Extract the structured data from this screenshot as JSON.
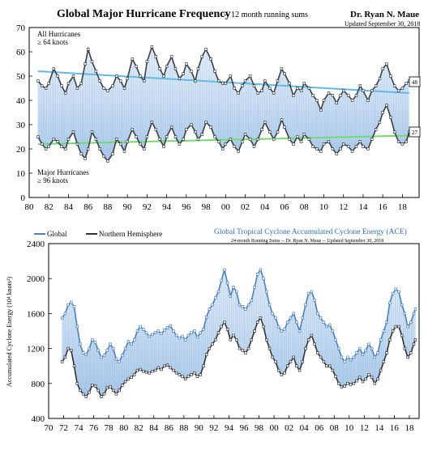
{
  "colors": {
    "all_line": "#3a3f46",
    "trend_all": "#5fb9ea",
    "trend_major": "#6fdc6f",
    "band_light": "#d5e6f6",
    "band_dark": "#9cc0e6",
    "global_line": "#4a7fbf",
    "nh_line": "#333333",
    "ace_title": "#2f6fb5"
  },
  "chart_data": [
    {
      "type": "line",
      "title": "Global Major Hurricane Frequency",
      "subtitle": "-- 12 month running sums",
      "author": "Dr. Ryan N. Maue",
      "updated": "Updated September 30, 2018",
      "xlim": [
        1980,
        2019.7
      ],
      "ylim": [
        0,
        70
      ],
      "yticks": [
        0,
        10,
        20,
        30,
        40,
        50,
        60,
        70
      ],
      "xtick_values": [
        1980,
        1982,
        1984,
        1986,
        1988,
        1990,
        1992,
        1994,
        1996,
        1998,
        2000,
        2002,
        2004,
        2006,
        2008,
        2010,
        2012,
        2014,
        2016,
        2018
      ],
      "xtick_labels": [
        "80",
        "82",
        "84",
        "86",
        "88",
        "90",
        "92",
        "94",
        "96",
        "98",
        "00",
        "02",
        "04",
        "06",
        "08",
        "10",
        "12",
        "14",
        "16",
        "18"
      ],
      "annotation_all": [
        "All Hurricanes",
        "≥ 64 knots"
      ],
      "annotation_major": [
        "Major Hurricanes",
        "≥ 96 knots"
      ],
      "end_labels": {
        "all": "48",
        "major": "27"
      },
      "trend_all": {
        "x": [
          1980.9,
          2018.7
        ],
        "y": [
          52,
          43
        ]
      },
      "trend_major": {
        "x": [
          1980.9,
          2018.7
        ],
        "y": [
          22,
          25.5
        ]
      },
      "series": [
        {
          "name": "All Hurricanes",
          "x": [
            1980.9,
            1981.3,
            1981.7,
            1982.0,
            1982.5,
            1982.9,
            1983.3,
            1983.7,
            1984.0,
            1984.5,
            1984.9,
            1985.3,
            1985.7,
            1986.0,
            1986.4,
            1986.8,
            1987.2,
            1987.6,
            1988.0,
            1988.5,
            1988.9,
            1989.3,
            1989.7,
            1990.0,
            1990.5,
            1990.9,
            1991.3,
            1991.7,
            1992.0,
            1992.5,
            1992.9,
            1993.3,
            1993.7,
            1994.0,
            1994.5,
            1994.9,
            1995.3,
            1995.7,
            1996.0,
            1996.5,
            1996.9,
            1997.2,
            1997.6,
            1998.0,
            1998.5,
            1998.9,
            1999.3,
            1999.7,
            2000.0,
            2000.5,
            2000.9,
            2001.3,
            2001.7,
            2002.0,
            2002.5,
            2002.9,
            2003.3,
            2003.7,
            2004.0,
            2004.5,
            2004.9,
            2005.3,
            2005.7,
            2006.0,
            2006.5,
            2006.9,
            2007.3,
            2007.7,
            2008.0,
            2008.5,
            2008.9,
            2009.3,
            2009.7,
            2010.0,
            2010.5,
            2010.9,
            2011.3,
            2011.7,
            2012.0,
            2012.5,
            2012.9,
            2013.3,
            2013.7,
            2014.0,
            2014.5,
            2014.9,
            2015.3,
            2015.7,
            2016.0,
            2016.4,
            2016.8,
            2017.2,
            2017.6,
            2018.0,
            2018.4,
            2018.7
          ],
          "y": [
            48,
            46,
            45,
            47,
            53,
            50,
            46,
            43,
            47,
            50,
            45,
            47,
            55,
            61,
            56,
            52,
            48,
            45,
            44,
            46,
            50,
            48,
            45,
            49,
            57,
            54,
            50,
            48,
            56,
            62,
            58,
            53,
            50,
            54,
            58,
            53,
            49,
            51,
            55,
            52,
            48,
            53,
            58,
            61,
            57,
            52,
            48,
            47,
            47,
            50,
            45,
            43,
            46,
            48,
            50,
            46,
            43,
            44,
            48,
            45,
            43,
            48,
            53,
            51,
            47,
            42,
            45,
            44,
            47,
            45,
            42,
            40,
            36,
            40,
            43,
            42,
            39,
            42,
            44,
            42,
            40,
            42,
            46,
            44,
            40,
            44,
            46,
            49,
            53,
            55,
            50,
            46,
            44,
            45,
            47,
            48
          ]
        },
        {
          "name": "Major Hurricanes",
          "x": [
            1980.9,
            1981.3,
            1981.7,
            1982.0,
            1982.5,
            1982.9,
            1983.3,
            1983.7,
            1984.0,
            1984.5,
            1984.9,
            1985.3,
            1985.7,
            1986.0,
            1986.4,
            1986.8,
            1987.2,
            1987.6,
            1988.0,
            1988.5,
            1988.9,
            1989.3,
            1989.7,
            1990.0,
            1990.5,
            1990.9,
            1991.3,
            1991.7,
            1992.0,
            1992.5,
            1992.9,
            1993.3,
            1993.7,
            1994.0,
            1994.5,
            1994.9,
            1995.3,
            1995.7,
            1996.0,
            1996.5,
            1996.9,
            1997.2,
            1997.6,
            1998.0,
            1998.5,
            1998.9,
            1999.3,
            1999.7,
            2000.0,
            2000.5,
            2000.9,
            2001.3,
            2001.7,
            2002.0,
            2002.5,
            2002.9,
            2003.3,
            2003.7,
            2004.0,
            2004.5,
            2004.9,
            2005.3,
            2005.7,
            2006.0,
            2006.5,
            2006.9,
            2007.3,
            2007.7,
            2008.0,
            2008.5,
            2008.9,
            2009.3,
            2009.7,
            2010.0,
            2010.5,
            2010.9,
            2011.3,
            2011.7,
            2012.0,
            2012.5,
            2012.9,
            2013.3,
            2013.7,
            2014.0,
            2014.5,
            2014.9,
            2015.3,
            2015.7,
            2016.0,
            2016.4,
            2016.8,
            2017.2,
            2017.6,
            2018.0,
            2018.4,
            2018.7
          ],
          "y": [
            25,
            22,
            20,
            21,
            24,
            23,
            21,
            20,
            24,
            27,
            22,
            18,
            16,
            20,
            27,
            24,
            20,
            17,
            15,
            18,
            24,
            22,
            19,
            23,
            28,
            25,
            22,
            20,
            25,
            31,
            28,
            24,
            21,
            25,
            29,
            25,
            22,
            24,
            28,
            30,
            27,
            24,
            26,
            31,
            29,
            25,
            23,
            20,
            22,
            24,
            21,
            19,
            23,
            26,
            24,
            21,
            24,
            28,
            31,
            27,
            24,
            27,
            32,
            29,
            24,
            22,
            25,
            23,
            26,
            24,
            21,
            20,
            19,
            22,
            23,
            20,
            18,
            20,
            22,
            21,
            19,
            21,
            23,
            21,
            20,
            24,
            28,
            31,
            35,
            38,
            33,
            27,
            23,
            22,
            23,
            27
          ]
        }
      ]
    },
    {
      "type": "line",
      "title": "Global Tropical Cyclone Accumulated Cyclone Energy (ACE)",
      "subtitle": "24-month Running Sums -- Dr. Ryan N. Maue -- Updated September 30, 2018",
      "legend": [
        "Global",
        "Northern Hemisphere"
      ],
      "ylabel": "Accumulated Cyclone Energy (10⁴ knots²)",
      "xlim": [
        1970,
        2019.3
      ],
      "ylim": [
        400,
        2400
      ],
      "yticks": [
        400,
        800,
        1200,
        1600,
        2000,
        2400
      ],
      "xtick_values": [
        1970,
        1972,
        1974,
        1976,
        1978,
        1980,
        1982,
        1984,
        1986,
        1988,
        1990,
        1992,
        1994,
        1996,
        1998,
        2000,
        2002,
        2004,
        2006,
        2008,
        2010,
        2012,
        2014,
        2016,
        2018
      ],
      "xtick_labels": [
        "70",
        "72",
        "74",
        "76",
        "78",
        "80",
        "82",
        "84",
        "86",
        "88",
        "90",
        "92",
        "94",
        "96",
        "98",
        "00",
        "02",
        "04",
        "06",
        "08",
        "10",
        "12",
        "14",
        "16",
        "18"
      ],
      "series": [
        {
          "name": "Global",
          "x": [
            1971.8,
            1972.2,
            1972.6,
            1973.0,
            1973.4,
            1973.8,
            1974.2,
            1974.6,
            1975.0,
            1975.4,
            1975.8,
            1976.2,
            1976.6,
            1977.0,
            1977.4,
            1977.8,
            1978.2,
            1978.6,
            1979.0,
            1979.4,
            1979.8,
            1980.2,
            1980.6,
            1981.0,
            1981.4,
            1981.8,
            1982.2,
            1982.6,
            1983.0,
            1983.4,
            1983.8,
            1984.2,
            1984.6,
            1985.0,
            1985.4,
            1985.8,
            1986.2,
            1986.6,
            1987.0,
            1987.4,
            1987.8,
            1988.2,
            1988.6,
            1989.0,
            1989.4,
            1989.8,
            1990.2,
            1990.6,
            1991.0,
            1991.4,
            1991.8,
            1992.2,
            1992.6,
            1993.0,
            1993.4,
            1993.8,
            1994.2,
            1994.6,
            1995.0,
            1995.4,
            1995.8,
            1996.2,
            1996.6,
            1997.0,
            1997.4,
            1997.8,
            1998.2,
            1998.6,
            1999.0,
            1999.4,
            1999.8,
            2000.2,
            2000.6,
            2001.0,
            2001.4,
            2001.8,
            2002.2,
            2002.6,
            2003.0,
            2003.4,
            2003.8,
            2004.2,
            2004.6,
            2005.0,
            2005.4,
            2005.8,
            2006.2,
            2006.6,
            2007.0,
            2007.4,
            2007.8,
            2008.2,
            2008.6,
            2009.0,
            2009.4,
            2009.8,
            2010.2,
            2010.6,
            2011.0,
            2011.4,
            2011.8,
            2012.2,
            2012.6,
            2013.0,
            2013.4,
            2013.8,
            2014.2,
            2014.6,
            2015.0,
            2015.4,
            2015.8,
            2016.2,
            2016.6,
            2017.0,
            2017.4,
            2017.8,
            2018.2,
            2018.6,
            2018.8
          ],
          "y": [
            1550,
            1600,
            1700,
            1730,
            1680,
            1450,
            1250,
            1150,
            1130,
            1200,
            1300,
            1270,
            1180,
            1100,
            1120,
            1180,
            1250,
            1200,
            1080,
            1050,
            1120,
            1200,
            1280,
            1250,
            1300,
            1400,
            1450,
            1420,
            1380,
            1340,
            1360,
            1380,
            1400,
            1370,
            1410,
            1440,
            1460,
            1400,
            1350,
            1320,
            1340,
            1300,
            1350,
            1380,
            1400,
            1330,
            1380,
            1420,
            1560,
            1650,
            1700,
            1780,
            1850,
            1980,
            2100,
            1950,
            1800,
            1900,
            1850,
            1700,
            1680,
            1650,
            1700,
            1750,
            1900,
            2050,
            2100,
            2000,
            1850,
            1700,
            1600,
            1550,
            1450,
            1400,
            1420,
            1500,
            1550,
            1600,
            1500,
            1400,
            1550,
            1700,
            1830,
            1850,
            1750,
            1600,
            1550,
            1500,
            1450,
            1470,
            1400,
            1300,
            1200,
            1100,
            1050,
            1100,
            1070,
            1100,
            1150,
            1200,
            1130,
            1180,
            1250,
            1200,
            1100,
            1150,
            1300,
            1400,
            1500,
            1720,
            1830,
            1880,
            1850,
            1700,
            1600,
            1450,
            1500,
            1600,
            1650
          ]
        },
        {
          "name": "Northern Hemisphere",
          "x": [
            1971.8,
            1972.2,
            1972.6,
            1973.0,
            1973.4,
            1973.8,
            1974.2,
            1974.6,
            1975.0,
            1975.4,
            1975.8,
            1976.2,
            1976.6,
            1977.0,
            1977.4,
            1977.8,
            1978.2,
            1978.6,
            1979.0,
            1979.4,
            1979.8,
            1980.2,
            1980.6,
            1981.0,
            1981.4,
            1981.8,
            1982.2,
            1982.6,
            1983.0,
            1983.4,
            1983.8,
            1984.2,
            1984.6,
            1985.0,
            1985.4,
            1985.8,
            1986.2,
            1986.6,
            1987.0,
            1987.4,
            1987.8,
            1988.2,
            1988.6,
            1989.0,
            1989.4,
            1989.8,
            1990.2,
            1990.6,
            1991.0,
            1991.4,
            1991.8,
            1992.2,
            1992.6,
            1993.0,
            1993.4,
            1993.8,
            1994.2,
            1994.6,
            1995.0,
            1995.4,
            1995.8,
            1996.2,
            1996.6,
            1997.0,
            1997.4,
            1997.8,
            1998.2,
            1998.6,
            1999.0,
            1999.4,
            1999.8,
            2000.2,
            2000.6,
            2001.0,
            2001.4,
            2001.8,
            2002.2,
            2002.6,
            2003.0,
            2003.4,
            2003.8,
            2004.2,
            2004.6,
            2005.0,
            2005.4,
            2005.8,
            2006.2,
            2006.6,
            2007.0,
            2007.4,
            2007.8,
            2008.2,
            2008.6,
            2009.0,
            2009.4,
            2009.8,
            2010.2,
            2010.6,
            2011.0,
            2011.4,
            2011.8,
            2012.2,
            2012.6,
            2013.0,
            2013.4,
            2013.8,
            2014.2,
            2014.6,
            2015.0,
            2015.4,
            2015.8,
            2016.2,
            2016.6,
            2017.0,
            2017.4,
            2017.8,
            2018.2,
            2018.6,
            2018.8
          ],
          "y": [
            1050,
            1100,
            1200,
            1180,
            1000,
            800,
            720,
            680,
            650,
            700,
            780,
            770,
            720,
            650,
            680,
            750,
            760,
            720,
            680,
            720,
            780,
            820,
            850,
            870,
            900,
            950,
            960,
            940,
            930,
            920,
            940,
            950,
            980,
            960,
            1000,
            1010,
            980,
            950,
            920,
            900,
            880,
            850,
            880,
            900,
            920,
            880,
            900,
            1000,
            1130,
            1200,
            1250,
            1300,
            1380,
            1450,
            1500,
            1420,
            1300,
            1350,
            1300,
            1200,
            1180,
            1150,
            1200,
            1300,
            1400,
            1500,
            1550,
            1450,
            1300,
            1200,
            1100,
            1050,
            950,
            900,
            920,
            1000,
            1050,
            1100,
            1000,
            950,
            1050,
            1200,
            1300,
            1350,
            1250,
            1150,
            1100,
            1050,
            1000,
            1000,
            950,
            880,
            800,
            760,
            770,
            800,
            790,
            800,
            830,
            870,
            820,
            850,
            900,
            870,
            800,
            850,
            950,
            1050,
            1150,
            1300,
            1400,
            1450,
            1450,
            1350,
            1200,
            1100,
            1150,
            1250,
            1300
          ]
        }
      ]
    }
  ]
}
